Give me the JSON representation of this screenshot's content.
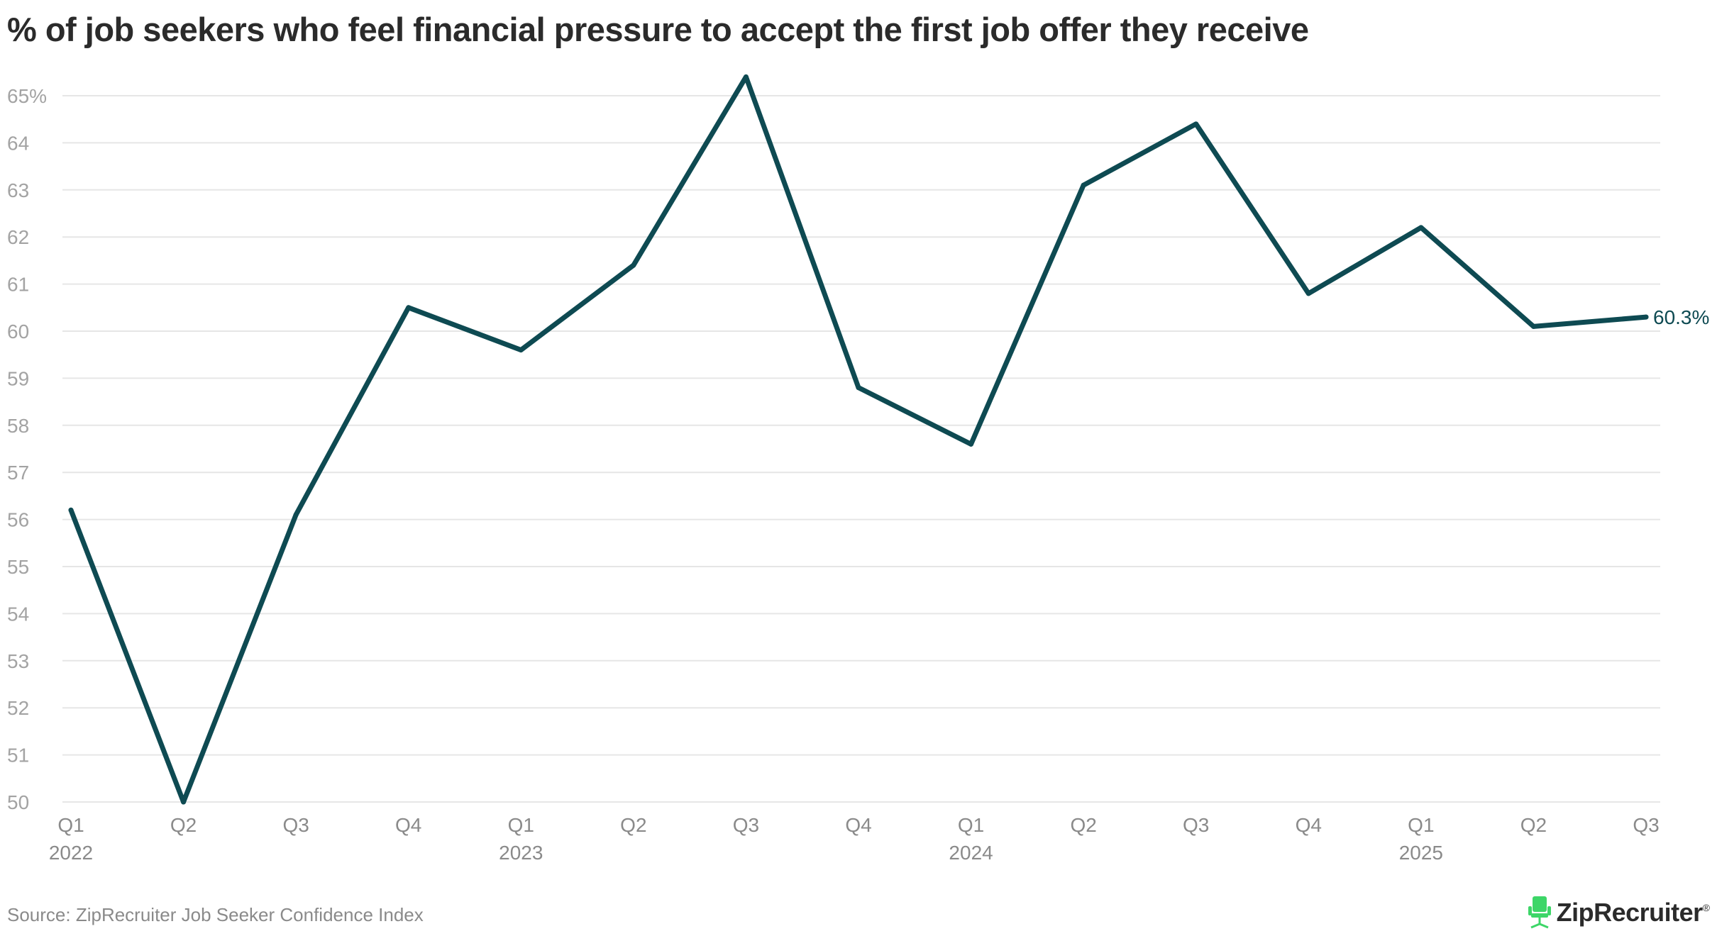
{
  "title": "% of job seekers who feel financial pressure to accept the first job offer they receive",
  "source": "Source: ZipRecruiter Job Seeker Confidence Index",
  "brand": {
    "name": "ZipRecruiter",
    "registered": "®"
  },
  "colors": {
    "line": "#0e4a52",
    "grid": "#e6e6e6",
    "brand_icon": "#3dd668"
  },
  "chart_data": {
    "type": "line",
    "title": "% of job seekers who feel financial pressure to accept the first job offer they receive",
    "xlabel": "",
    "ylabel": "",
    "ylim": [
      50,
      65
    ],
    "grid": true,
    "y_ticks": [
      50,
      51,
      52,
      53,
      54,
      55,
      56,
      57,
      58,
      59,
      60,
      61,
      62,
      63,
      64,
      65
    ],
    "y_tick_labels": [
      "50",
      "51",
      "52",
      "53",
      "54",
      "55",
      "56",
      "57",
      "58",
      "59",
      "60",
      "61",
      "62",
      "63",
      "64",
      "65%"
    ],
    "categories": [
      "Q1",
      "Q2",
      "Q3",
      "Q4",
      "Q1",
      "Q2",
      "Q3",
      "Q4",
      "Q1",
      "Q2",
      "Q3",
      "Q4",
      "Q1",
      "Q2",
      "Q3"
    ],
    "years": [
      "2022",
      "",
      "",
      "",
      "2023",
      "",
      "",
      "",
      "2024",
      "",
      "",
      "",
      "2025",
      "",
      ""
    ],
    "series": [
      {
        "name": "% of job seekers who feel financial pressure",
        "values": [
          56.2,
          50.0,
          56.1,
          60.5,
          59.6,
          61.4,
          65.4,
          58.8,
          57.6,
          63.1,
          64.4,
          60.8,
          62.2,
          60.1,
          60.3
        ]
      }
    ],
    "end_label": "60.3%"
  }
}
